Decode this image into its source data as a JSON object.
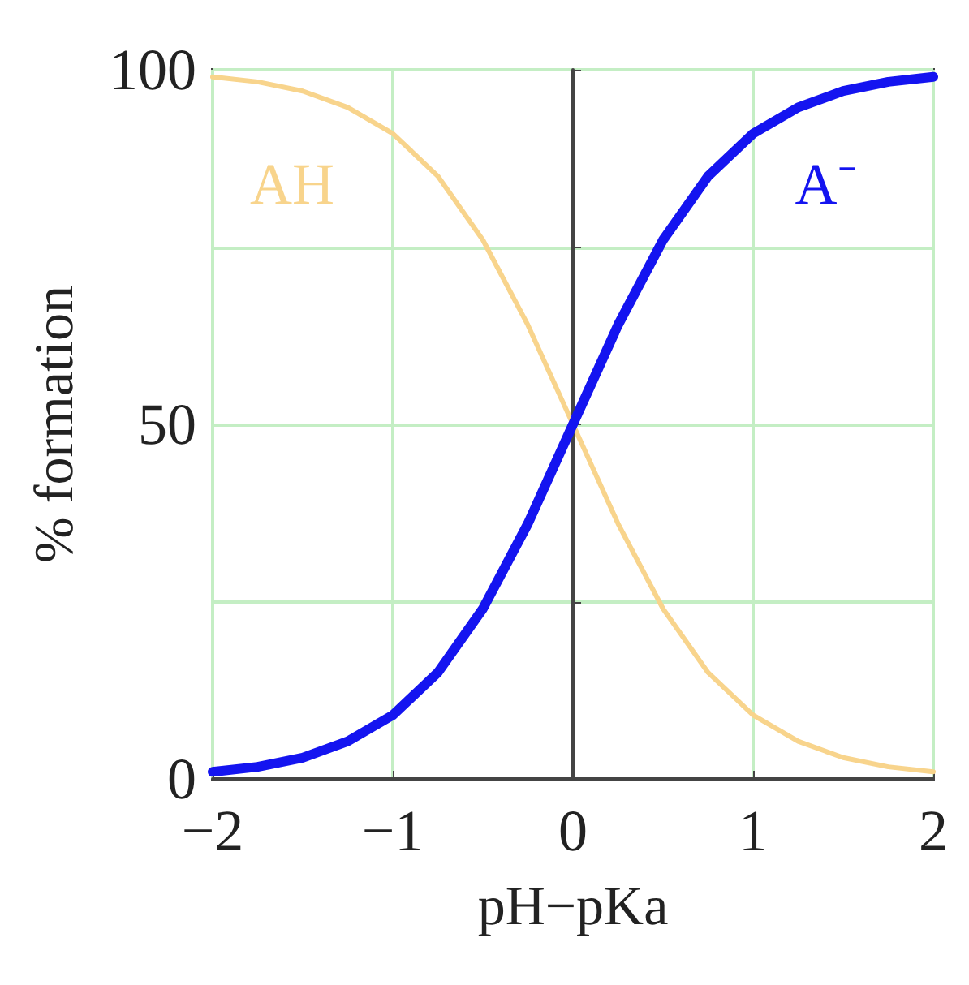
{
  "chart_data": {
    "type": "line",
    "xlabel": "pH−pKa",
    "ylabel": "% formation",
    "x": [
      -2,
      -1.75,
      -1.5,
      -1.25,
      -1,
      -0.75,
      -0.5,
      -0.25,
      0,
      0.25,
      0.5,
      0.75,
      1,
      1.25,
      1.5,
      1.75,
      2
    ],
    "series": [
      {
        "name": "AH",
        "color": "#f8d48c",
        "values": [
          99,
          98.3,
          97,
          94.7,
          91,
          85,
          76,
          64,
          50,
          36,
          24,
          15,
          9,
          5.3,
          3,
          1.7,
          1
        ]
      },
      {
        "name": "A⁻",
        "color": "#1414f0",
        "values": [
          1,
          1.7,
          3,
          5.3,
          9,
          15,
          24,
          36,
          50,
          64,
          76,
          85,
          91,
          94.7,
          97,
          98.3,
          99
        ]
      }
    ],
    "xlim": [
      -2,
      2
    ],
    "xticks": [
      -2,
      -1,
      0,
      1,
      2
    ],
    "ylim": [
      0,
      100
    ],
    "yticks": [
      0,
      {
        "value": 25,
        "label": null
      },
      50,
      {
        "value": 75,
        "label": null
      },
      100
    ],
    "grid": true,
    "legend": false,
    "marker": "none",
    "line_style": "solid"
  }
}
